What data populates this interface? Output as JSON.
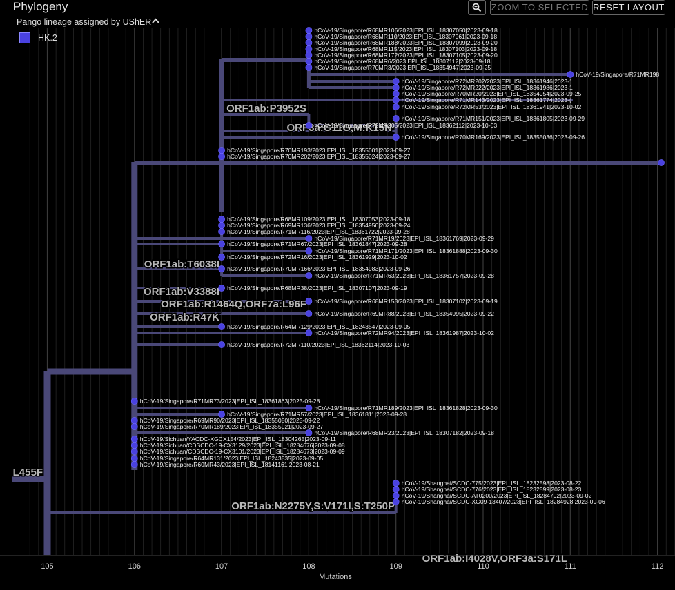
{
  "header": {
    "title": "Phylogeny",
    "zoom_icon": "magnifier-icon",
    "zoom_to_selected": "ZOOM TO SELECTED",
    "reset_layout": "RESET LAYOUT"
  },
  "legend": {
    "title": "Pango lineage assigned by UShER",
    "collapse_icon": "chevron-up-icon",
    "items": [
      {
        "label": "HK.2",
        "color": "#4a42e0"
      }
    ]
  },
  "colors": {
    "branch": "#4a4878",
    "tip": "#4a42e0",
    "grid": "#262626",
    "background": "#000000"
  },
  "axis": {
    "label": "Mutations",
    "ticks": [
      105,
      106,
      107,
      108,
      109,
      110,
      111,
      112
    ],
    "tick_labels": [
      "105",
      "106",
      "107",
      "108",
      "109",
      "110",
      "111",
      "112"
    ]
  },
  "mutation_labels": [
    "L455F",
    "ORF1ab:P3952S",
    "ORF3a:G11G,M:K15N",
    "ORF1ab:T6038I",
    "ORF1ab:V3388I",
    "ORF1ab:R1464Q,ORF7a:L96F",
    "ORF1ab:R47K",
    "ORF1ab:N2275Y,S:V171I,S:T250P",
    "ORF1ab:I4028V,ORF3a:S171L"
  ],
  "tips": [
    "hCoV-19/Singapore/R68MR106/2023|EPI_ISL_18307050|2023-09-18",
    "hCoV-19/Singapore/R68MR110/2023|EPI_ISL_18307061|2023-09-18",
    "hCoV-19/Singapore/R68MR188/2023|EPI_ISL_18307099|2023-09-20",
    "hCoV-19/Singapore/R68MR115/2023|EPI_ISL_18307103|2023-09-18",
    "hCoV-19/Singapore/R68MR172/2023|EPI_ISL_18307105|2023-09-20",
    "hCoV-19/Singapore/R68MR6/2023|EPI_ISL_18307112|2023-09-18",
    "hCoV-19/Singapore/R70MR3/2023|EPI_ISL_18354947|2023-09-25",
    "hCoV-19/Singapore/R71MR198",
    "hCoV-19/Singapore/R72MR202/2023|EPI_ISL_18361946|2023-1",
    "hCoV-19/Singapore/R72MR222/2023|EPI_ISL_18361986|2023-1",
    "hCoV-19/Singapore/R70MR20/2023|EPI_ISL_18354954|2023-09-25",
    "hCoV-19/Singapore/R71MR143/2023|EPI_ISL_18361774|2023-(",
    "hCoV-19/Singapore/R72MR53/2023|EPI_ISL_18361941|2023-10-02",
    "hCoV-19/Singapore/R71MR151/2023|EPI_ISL_18361805|2023-09-29",
    "hCoV-19/Singapore/R72MR205/2023|EPI_ISL_18362112|2023-10-03",
    "hCoV-19/Singapore/R70MR169/2023|EPI_ISL_18355036|2023-09-26",
    "hCoV-19/Singapore/R70MR193/2023|EPI_ISL_18355001|2023-09-27",
    "hCoV-19/Singapore/R70MR202/2023|EPI_ISL_18355024|2023-09-27",
    "hCoV-19/Singapore/R68MR109/2023|EPI_ISL_18307053|2023-09-18",
    "hCoV-19/Singapore/R69MR136/2023|EPI_ISL_18354956|2023-09-24",
    "hCoV-19/Singapore/R71MR116/2023|EPI_ISL_18361722|2023-09-28",
    "hCoV-19/Singapore/R71MR19/2023|EPI_ISL_18361769|2023-09-29",
    "hCoV-19/Singapore/R71MR67/2023|EPI_ISL_18361847|2023-09-28",
    "hCoV-19/Singapore/R71MR171/2023|EPI_ISL_18361888|2023-09-30",
    "hCoV-19/Singapore/R72MR16/2023|EPI_ISL_18361929|2023-10-02",
    "hCoV-19/Singapore/R70MR166/2023|EPI_ISL_18354983|2023-09-26",
    "hCoV-19/Singapore/R71MR63/2023|EPI_ISL_18361757|2023-09-28",
    "hCoV-19/Singapore/R68MR38/2023|EPI_ISL_18307107|2023-09-19",
    "hCoV-19/Singapore/R68MR153/2023|EPI_ISL_18307102|2023-09-19",
    "hCoV-19/Singapore/R69MR88/2023|EPI_ISL_18354995|2023-09-22",
    "hCoV-19/Singapore/R64MR129/2023|EPI_ISL_18243547|2023-09-05",
    "hCoV-19/Singapore/R72MR94/2023|EPI_ISL_18361987|2023-10-02",
    "hCoV-19/Singapore/R72MR110/2023|EPI_ISL_18362114|2023-10-03",
    "hCoV-19/Singapore/R71MR73/2023|EPI_ISL_18361863|2023-09-28",
    "hCoV-19/Singapore/R71MR189/2023|EPI_ISL_18361828|2023-09-30",
    "hCoV-19/Singapore/R71MR57/2023|EPI_ISL_18361811|2023-09-28",
    "hCoV-19/Singapore/R69MR90/2023|EPI_ISL_18355050|2023-09-22",
    "hCoV-19/Singapore/R70MR189/2023|EPI_ISL_18355021|2023-09-27",
    "hCoV-19/Singapore/R68MR23/2023|EPI_ISL_18307182|2023-09-18",
    "hCoV-19/Sichuan/YACDC-XGCX154/2023|EPI_ISL_18304265|2023-09-11",
    "hCoV-19/Sichuan/CDSCDC-19-CX3129/2023|EPI_ISL_18284676|2023-09-08",
    "hCoV-19/Sichuan/CDSCDC-19-CX3101/2023|EPI_ISL_18284673|2023-09-09",
    "hCoV-19/Singapore/R64MR131/2023|EPI_ISL_18243535|2023-09-05",
    "hCoV-19/Singapore/R60MR43/2023|EPI_ISL_18141161|2023-08-21",
    "hCoV-19/Shanghai/SCDC-775/2023|EPI_ISL_18232598|2023-08-22",
    "hCoV-19/Shanghai/SCDC-776/2023|EPI_ISL_18232599|2023-08-23",
    "hCoV-19/Shanghai/SCDC-AT0200/2023|EPI_ISL_18284792|2023-09-02",
    "hCoV-19/Shanghai/SCDC-XG09-13407/2023|EPI_ISL_18284928|2023-09-06"
  ]
}
